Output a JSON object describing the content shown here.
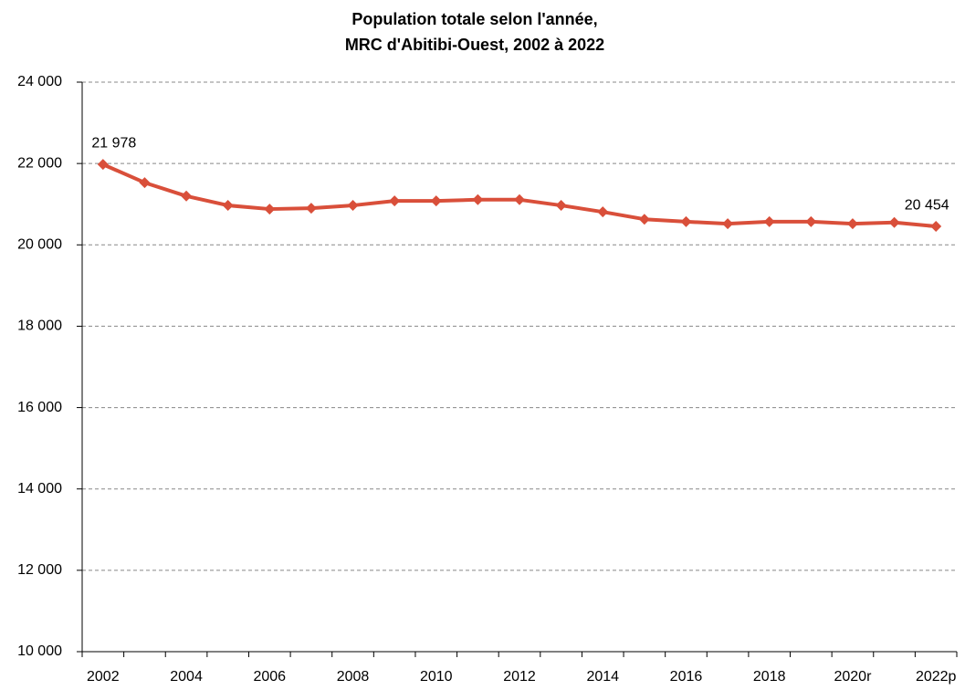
{
  "chart_data": {
    "type": "line",
    "title": [
      "Population totale selon l'année,",
      "MRC d'Abitibi-Ouest, 2002 à 2022"
    ],
    "categories": [
      "2002",
      null,
      "2004",
      null,
      "2006",
      null,
      "2008",
      null,
      "2010",
      null,
      "2012",
      null,
      "2014",
      null,
      "2016",
      null,
      "2018",
      null,
      "2020r",
      null,
      "2022p"
    ],
    "series": [
      {
        "name": "Population totale",
        "color": "#d94f3a",
        "values": [
          21978,
          21530,
          21200,
          20970,
          20880,
          20900,
          20970,
          21080,
          21080,
          21110,
          21110,
          20970,
          20810,
          20630,
          20570,
          20520,
          20570,
          20570,
          20520,
          20550,
          20454
        ],
        "value_labels": [
          "21 978",
          null,
          null,
          null,
          null,
          null,
          null,
          null,
          null,
          null,
          null,
          null,
          null,
          null,
          null,
          null,
          null,
          null,
          null,
          null,
          "20 454"
        ]
      }
    ],
    "ylim": [
      10000,
      24000
    ],
    "yticks": [
      {
        "value": 10000,
        "label": "10 000"
      },
      {
        "value": 12000,
        "label": "12 000"
      },
      {
        "value": 14000,
        "label": "14 000"
      },
      {
        "value": 16000,
        "label": "16 000"
      },
      {
        "value": 18000,
        "label": "18 000"
      },
      {
        "value": 20000,
        "label": "20 000"
      },
      {
        "value": 22000,
        "label": "22 000"
      },
      {
        "value": 24000,
        "label": "24 000"
      }
    ],
    "grid": true
  }
}
